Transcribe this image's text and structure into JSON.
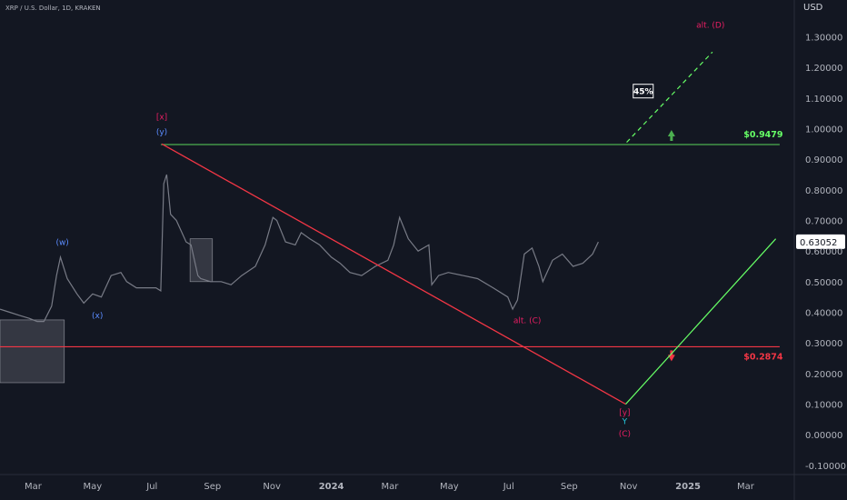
{
  "header": {
    "symbol": "XRP / U.S. Dollar, 1D, KRAKEN",
    "currency": "USD"
  },
  "colors": {
    "background": "#131722",
    "grid": "#1e222d",
    "price": "#787b86",
    "resistance": "#4caf50",
    "support": "#f23645",
    "magenta": "#e91e63",
    "blue": "#2962ff",
    "cyan": "#26c6da",
    "green_label": "#66ff66",
    "text": "#b2b5be"
  },
  "chart_data": {
    "type": "line",
    "title": "XRP / U.S. Dollar, 1D, KRAKEN",
    "y_axis": {
      "ylim": [
        -0.13,
        1.42
      ],
      "ticks": [
        "1.30000",
        "1.20000",
        "1.10000",
        "1.00000",
        "0.90000",
        "0.80000",
        "0.70000",
        "0.60000",
        "0.50000",
        "0.40000",
        "0.30000",
        "0.20000",
        "0.10000",
        "0.00000",
        "-0.10000"
      ],
      "tick_values": [
        1.3,
        1.2,
        1.1,
        1.0,
        0.9,
        0.8,
        0.7,
        0.6,
        0.5,
        0.4,
        0.3,
        0.2,
        0.1,
        0.0,
        -0.1
      ],
      "position": "right"
    },
    "x_axis": {
      "xlim": [
        "2023-01-26",
        "2025-04-20"
      ],
      "tick_labels": [
        "Mar",
        "May",
        "Jul",
        "Sep",
        "Nov",
        "2024",
        "Mar",
        "May",
        "Jul",
        "Sep",
        "Nov",
        "2025",
        "Mar"
      ],
      "tick_dates": [
        "2023-03-01",
        "2023-05-01",
        "2023-07-01",
        "2023-09-01",
        "2023-11-01",
        "2024-01-01",
        "2024-03-01",
        "2024-05-01",
        "2024-07-01",
        "2024-09-01",
        "2024-11-01",
        "2025-01-01",
        "2025-03-01"
      ],
      "bold_labels": [
        "2024",
        "2025"
      ]
    },
    "grid": false,
    "series": [
      {
        "name": "XRP / U.S. Dollar",
        "x": [
          "2023-01-26",
          "2023-02-05",
          "2023-02-15",
          "2023-02-25",
          "2023-03-05",
          "2023-03-12",
          "2023-03-20",
          "2023-03-25",
          "2023-03-29",
          "2023-04-05",
          "2023-04-15",
          "2023-04-22",
          "2023-05-01",
          "2023-05-10",
          "2023-05-20",
          "2023-05-30",
          "2023-06-05",
          "2023-06-15",
          "2023-06-25",
          "2023-07-05",
          "2023-07-10",
          "2023-07-13",
          "2023-07-16",
          "2023-07-20",
          "2023-07-26",
          "2023-08-05",
          "2023-08-10",
          "2023-08-17",
          "2023-08-20",
          "2023-08-30",
          "2023-09-10",
          "2023-09-20",
          "2023-10-01",
          "2023-10-15",
          "2023-10-25",
          "2023-11-02",
          "2023-11-06",
          "2023-11-15",
          "2023-11-25",
          "2023-12-01",
          "2023-12-10",
          "2023-12-20",
          "2024-01-01",
          "2024-01-10",
          "2024-01-20",
          "2024-02-01",
          "2024-02-15",
          "2024-02-28",
          "2024-03-05",
          "2024-03-11",
          "2024-03-20",
          "2024-03-30",
          "2024-04-10",
          "2024-04-13",
          "2024-04-20",
          "2024-04-30",
          "2024-05-15",
          "2024-05-30",
          "2024-06-15",
          "2024-06-30",
          "2024-07-05",
          "2024-07-10",
          "2024-07-17",
          "2024-07-25",
          "2024-08-01",
          "2024-08-05",
          "2024-08-15",
          "2024-08-25",
          "2024-09-05",
          "2024-09-15",
          "2024-09-25",
          "2024-10-01"
        ],
        "values": [
          0.41,
          0.4,
          0.39,
          0.38,
          0.37,
          0.37,
          0.42,
          0.52,
          0.58,
          0.51,
          0.46,
          0.43,
          0.46,
          0.45,
          0.52,
          0.53,
          0.5,
          0.48,
          0.48,
          0.48,
          0.47,
          0.82,
          0.85,
          0.72,
          0.7,
          0.63,
          0.62,
          0.52,
          0.51,
          0.5,
          0.5,
          0.49,
          0.52,
          0.55,
          0.62,
          0.71,
          0.7,
          0.63,
          0.62,
          0.66,
          0.64,
          0.62,
          0.58,
          0.56,
          0.53,
          0.52,
          0.55,
          0.57,
          0.62,
          0.71,
          0.64,
          0.6,
          0.62,
          0.49,
          0.52,
          0.53,
          0.52,
          0.51,
          0.48,
          0.45,
          0.41,
          0.44,
          0.59,
          0.61,
          0.55,
          0.5,
          0.57,
          0.59,
          0.55,
          0.56,
          0.59,
          0.63
        ]
      }
    ],
    "last_price": 0.63052,
    "levels": [
      {
        "label": "$0.9479",
        "value": 0.9479,
        "from": "2023-07-10",
        "to": "2025-04-05",
        "color": "green"
      },
      {
        "label": "$0.2874",
        "value": 0.2874,
        "from": "2023-01-26",
        "to": "2025-04-05",
        "color": "red"
      }
    ],
    "trendline": {
      "from": {
        "x": "2023-07-11",
        "y": 0.95
      },
      "to": {
        "x": "2024-10-29",
        "y": 0.1
      }
    },
    "projection_solid": [
      {
        "x": "2024-10-29",
        "y": 0.1
      },
      {
        "x": "2025-04-01",
        "y": 0.64
      }
    ],
    "projection_dashed": [
      {
        "x": "2024-10-30",
        "y": 0.955
      },
      {
        "x": "2025-01-26",
        "y": 1.25
      }
    ],
    "annotations": {
      "pct_box": "45%",
      "alt_d": "alt. (D)",
      "alt_c": "alt. (C)",
      "x_bracket": "[x]",
      "y_paren_top": "(y)",
      "w": "(w)",
      "x_paren": "(x)",
      "y_bracket": "[y]",
      "Y": "Y",
      "C_paren": "(C)"
    }
  }
}
